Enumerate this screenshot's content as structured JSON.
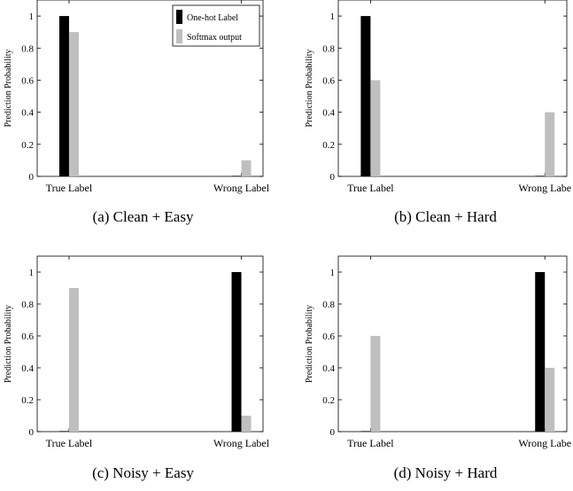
{
  "legend": {
    "one_hot": "One-hot Label",
    "softmax": "Softmax output"
  },
  "colors": {
    "one_hot": "#000000",
    "softmax": "#bfbfbf"
  },
  "chart_data": [
    {
      "type": "bar",
      "caption": "(a) Clean + Easy",
      "categories": [
        "True Label",
        "Wrong Label"
      ],
      "ylabel": "Prediction Probability",
      "ylim": [
        0,
        1.1
      ],
      "yticks": [
        "0",
        "0.2",
        "0.4",
        "0.6",
        "0.8",
        "1"
      ],
      "legend": "top-right",
      "series": [
        {
          "name": "One-hot Label",
          "values": [
            1,
            0
          ]
        },
        {
          "name": "Softmax output",
          "values": [
            0.9,
            0.1
          ]
        }
      ]
    },
    {
      "type": "bar",
      "caption": "(b) Clean + Hard",
      "categories": [
        "True Label",
        "Wrong Labe"
      ],
      "ylabel": "Prediction Probability",
      "ylim": [
        0,
        1.1
      ],
      "yticks": [
        "0",
        "0.2",
        "0.4",
        "0.6",
        "0.8",
        "1"
      ],
      "series": [
        {
          "name": "One-hot Label",
          "values": [
            1,
            0
          ]
        },
        {
          "name": "Softmax output",
          "values": [
            0.6,
            0.4
          ]
        }
      ]
    },
    {
      "type": "bar",
      "caption": "(c) Noisy + Easy",
      "categories": [
        "True Label",
        "Wrong Label"
      ],
      "ylabel": "Prediction Probability",
      "ylim": [
        0,
        1.1
      ],
      "yticks": [
        "0",
        "0.2",
        "0.4",
        "0.6",
        "0.8",
        "1"
      ],
      "series": [
        {
          "name": "One-hot Label",
          "values": [
            0,
            1
          ]
        },
        {
          "name": "Softmax output",
          "values": [
            0.9,
            0.1
          ]
        }
      ]
    },
    {
      "type": "bar",
      "caption": "(d) Noisy + Hard",
      "categories": [
        "True Label",
        "Wrong Labe"
      ],
      "ylabel": "Prediction Probability",
      "ylim": [
        0,
        1.1
      ],
      "yticks": [
        "0",
        "0.2",
        "0.4",
        "0.6",
        "0.8",
        "1"
      ],
      "series": [
        {
          "name": "One-hot Label",
          "values": [
            0,
            1
          ]
        },
        {
          "name": "Softmax output",
          "values": [
            0.6,
            0.4
          ]
        }
      ]
    }
  ]
}
